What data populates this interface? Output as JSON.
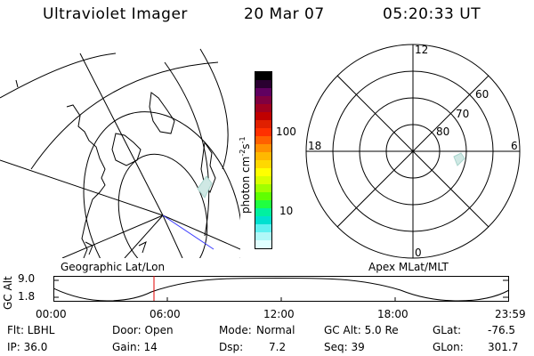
{
  "header": {
    "instrument": "Ultraviolet Imager",
    "date": "20 Mar 07",
    "time": "05:20:33 UT"
  },
  "colorbar": {
    "label": "photon cm",
    "label_exp1": "-2",
    "label_mid": "s",
    "label_exp2": "-1",
    "ticks": [
      "100",
      "10"
    ],
    "colors": [
      "#000000",
      "#2a0030",
      "#600060",
      "#800040",
      "#a00020",
      "#c00000",
      "#e02000",
      "#ff3000",
      "#ff6000",
      "#ff9000",
      "#ffb800",
      "#ffd800",
      "#ffff00",
      "#d8ff00",
      "#a0ff00",
      "#60ff00",
      "#20ff40",
      "#00f0a0",
      "#00e0d0",
      "#60f0f0",
      "#b0f8f8",
      "#e0ffff"
    ]
  },
  "polar_plot": {
    "labels": {
      "top": "12",
      "bottom": "0",
      "left": "18",
      "right": "6"
    },
    "latitudes": [
      "60",
      "70",
      "80"
    ]
  },
  "panel_labels": {
    "geographic": "Geographic Lat/Lon",
    "apex": "Apex MLat/MLT"
  },
  "altitude_strip": {
    "axis_label": "GC Alt",
    "y_ticks": [
      "9.0",
      "1.8"
    ],
    "x_ticks": [
      "00:00",
      "06:00",
      "12:00",
      "18:00",
      "23:59"
    ],
    "marker_time": "05:20"
  },
  "info": {
    "flt": "Flt: LBHL",
    "ip": "IP: 36.0",
    "door": "Door: Open",
    "gain": "Gain: 14",
    "mode_label": "Mode:",
    "mode_value": "Normal",
    "dsp_label": "Dsp:",
    "dsp_value": "7.2",
    "gc_alt": "GC Alt: 5.0 Re",
    "seq": "Seq: 39",
    "glat_label": "GLat:",
    "glat_value": "-76.5",
    "glon_label": "GLon:",
    "glon_value": "301.7"
  }
}
